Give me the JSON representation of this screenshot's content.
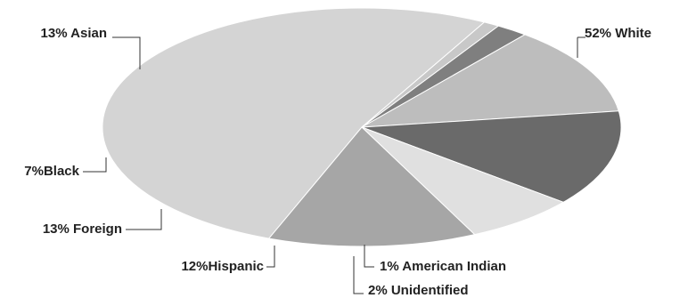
{
  "chart_data": {
    "type": "pie",
    "title": "",
    "slices": [
      {
        "label": "52% White",
        "value": 52,
        "color": "#d4d4d4"
      },
      {
        "label": "1% American Indian",
        "value": 1,
        "color": "#c8c8c8"
      },
      {
        "label": "2% Unidentified",
        "value": 2,
        "color": "#7f7f7f"
      },
      {
        "label": "12%Hispanic",
        "value": 12,
        "color": "#bdbdbd"
      },
      {
        "label": "13% Foreign",
        "value": 13,
        "color": "#6a6a6a"
      },
      {
        "label": "7%Black",
        "value": 7,
        "color": "#e0e0e0"
      },
      {
        "label": "13% Asian",
        "value": 13,
        "color": "#a6a6a6"
      }
    ]
  }
}
